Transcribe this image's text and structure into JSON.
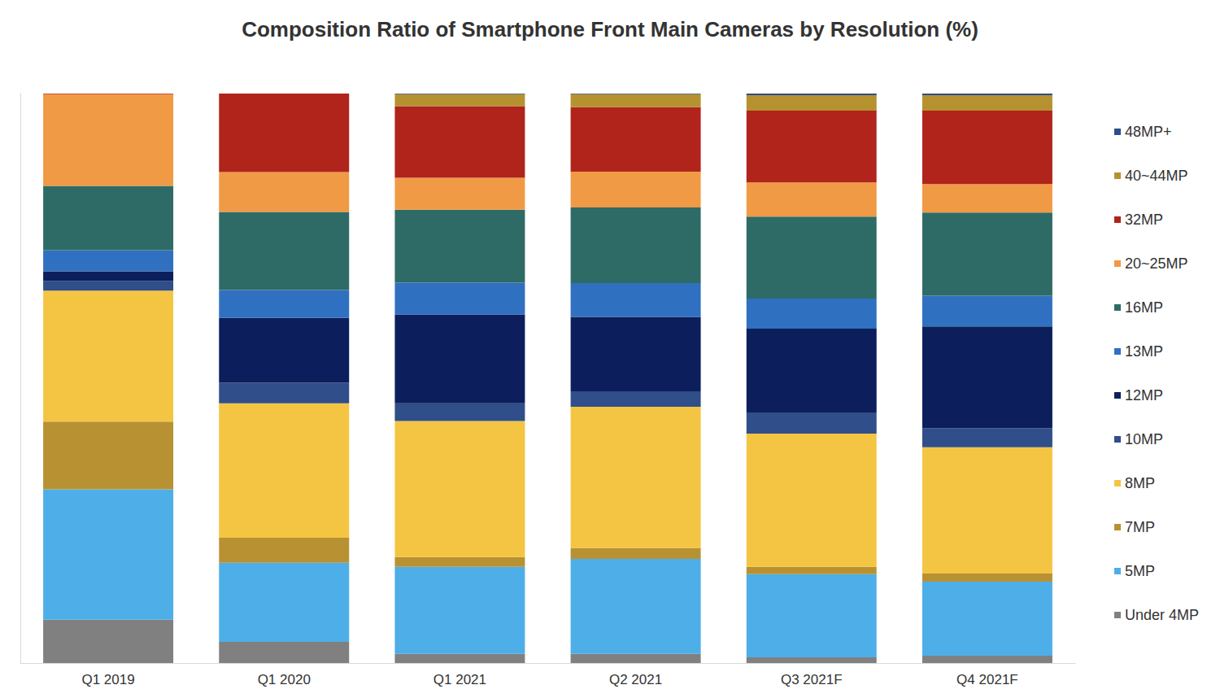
{
  "chart_data": {
    "type": "bar",
    "title": "Composition Ratio of Smartphone Front Main Cameras by Resolution (%)",
    "categories": [
      "Q1 2019",
      "Q1 2020",
      "Q1 2021",
      "Q2 2021",
      "Q3 2021F",
      "Q4 2021F"
    ],
    "stacked": true,
    "legend": "right",
    "tick_labels": "x",
    "grid": false,
    "ylim": [
      0,
      100
    ],
    "series": [
      {
        "name": "Under 4MP",
        "color": "#808080",
        "values": [
          7.6,
          3.7,
          1.6,
          1.6,
          1.0,
          1.3
        ]
      },
      {
        "name": "5MP",
        "color": "#4eaee8",
        "values": [
          22.9,
          13.9,
          15.3,
          16.7,
          14.6,
          13.0
        ]
      },
      {
        "name": "7MP",
        "color": "#b89232",
        "values": [
          11.9,
          4.4,
          1.7,
          1.9,
          1.3,
          1.4
        ]
      },
      {
        "name": "8MP",
        "color": "#f4c443",
        "values": [
          23.0,
          23.6,
          23.9,
          24.8,
          23.4,
          22.2
        ]
      },
      {
        "name": "10MP",
        "color": "#2f4e8a",
        "values": [
          1.7,
          3.6,
          3.1,
          2.7,
          3.7,
          3.3
        ]
      },
      {
        "name": "12MP",
        "color": "#0c1f5c",
        "values": [
          1.7,
          11.4,
          15.6,
          13.1,
          14.7,
          17.9
        ]
      },
      {
        "name": "13MP",
        "color": "#3070c0",
        "values": [
          3.7,
          4.9,
          5.6,
          5.9,
          5.3,
          5.4
        ]
      },
      {
        "name": "16MP",
        "color": "#2e6b66",
        "values": [
          11.3,
          13.7,
          12.8,
          13.3,
          14.4,
          14.6
        ]
      },
      {
        "name": "20~25MP",
        "color": "#f09a45",
        "values": [
          16.1,
          7.0,
          5.6,
          6.3,
          6.0,
          5.0
        ]
      },
      {
        "name": "32MP",
        "color": "#b0241b",
        "values": [
          0.1,
          13.8,
          12.6,
          11.3,
          12.6,
          12.9
        ]
      },
      {
        "name": "40~44MP",
        "color": "#b5922f",
        "values": [
          0,
          0,
          2.1,
          2.3,
          2.7,
          2.7
        ]
      },
      {
        "name": "48MP+",
        "color": "#2c4f8c",
        "values": [
          0,
          0,
          0.1,
          0.1,
          0.3,
          0.3
        ]
      }
    ]
  }
}
